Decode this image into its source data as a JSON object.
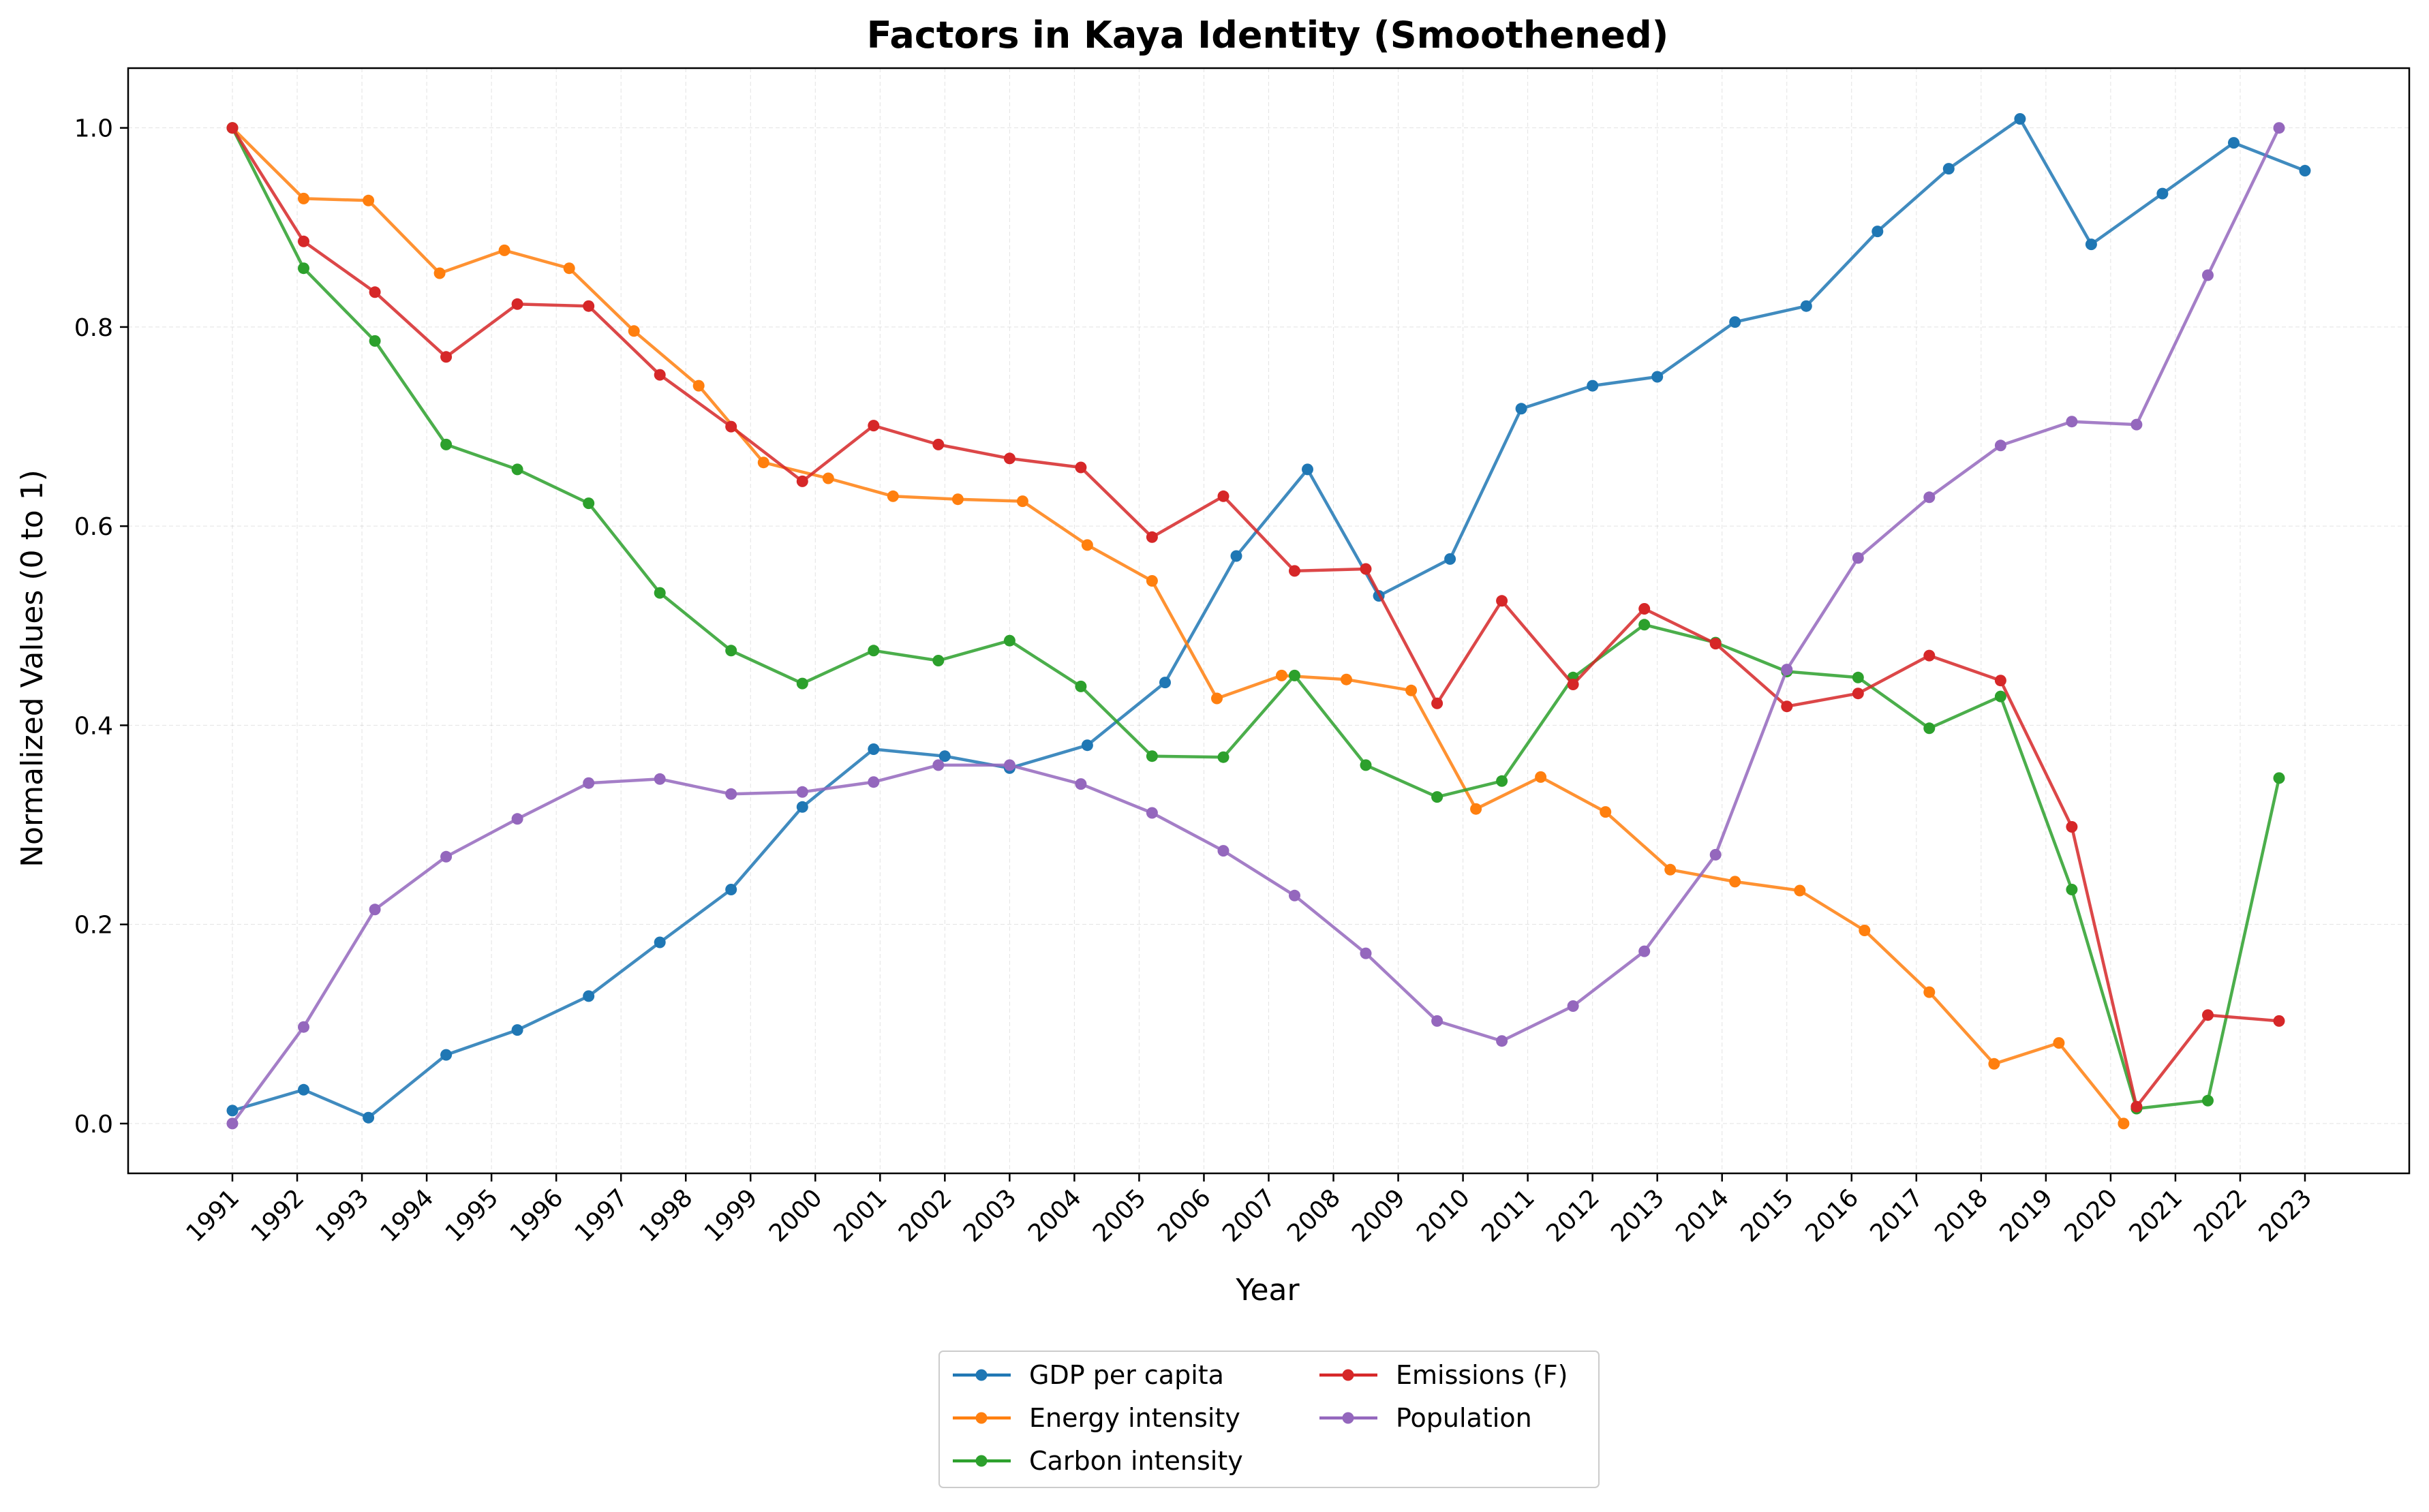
{
  "chart_data": {
    "type": "line",
    "title": "Factors in Kaya Identity (Smoothened)",
    "xlabel": "Year",
    "ylabel": "Normalized Values (0 to 1)",
    "ylim": [
      -0.05,
      1.06
    ],
    "yticks": [
      "0.0",
      "0.2",
      "0.4",
      "0.6",
      "0.8",
      "1.0"
    ],
    "grid": true,
    "legend_position": "bottom-center",
    "categories": [
      "1991",
      "1992",
      "1993",
      "1994",
      "1995",
      "1996",
      "1997",
      "1998",
      "1999",
      "2000",
      "2001",
      "2002",
      "2003",
      "2004",
      "2005",
      "2006",
      "2007",
      "2008",
      "2009",
      "2010",
      "2011",
      "2012",
      "2013",
      "2014",
      "2015",
      "2016",
      "2017",
      "2018",
      "2019",
      "2020",
      "2021",
      "2022",
      "2023"
    ],
    "series": [
      {
        "name": "GDP per capita",
        "color": "#1f77b4",
        "points": [
          [
            1991.0,
            0.013
          ],
          [
            1992.1,
            0.034
          ],
          [
            1993.1,
            0.006
          ],
          [
            1994.3,
            0.069
          ],
          [
            1995.4,
            0.094
          ],
          [
            1996.5,
            0.128
          ],
          [
            1997.6,
            0.182
          ],
          [
            1998.7,
            0.235
          ],
          [
            1999.8,
            0.318
          ],
          [
            2000.9,
            0.376
          ],
          [
            2002.0,
            0.369
          ],
          [
            2003.0,
            0.357
          ],
          [
            2004.2,
            0.38
          ],
          [
            2005.4,
            0.443
          ],
          [
            2006.5,
            0.57
          ],
          [
            2007.6,
            0.657
          ],
          [
            2008.7,
            0.53
          ],
          [
            2009.8,
            0.567
          ],
          [
            2010.9,
            0.718
          ],
          [
            2012.0,
            0.741
          ],
          [
            2013.0,
            0.75
          ],
          [
            2014.2,
            0.805
          ],
          [
            2015.3,
            0.821
          ],
          [
            2016.4,
            0.896
          ],
          [
            2017.5,
            0.959
          ],
          [
            2018.6,
            1.009
          ],
          [
            2019.7,
            0.883
          ],
          [
            2020.8,
            0.934
          ],
          [
            2021.9,
            0.985
          ],
          [
            2023.0,
            0.957
          ]
        ]
      },
      {
        "name": "Energy intensity",
        "color": "#ff7f0e",
        "points": [
          [
            1991.0,
            1.0
          ],
          [
            1992.1,
            0.929
          ],
          [
            1993.1,
            0.927
          ],
          [
            1994.2,
            0.854
          ],
          [
            1995.2,
            0.877
          ],
          [
            1996.2,
            0.859
          ],
          [
            1997.2,
            0.796
          ],
          [
            1998.2,
            0.741
          ],
          [
            1999.2,
            0.664
          ],
          [
            2000.2,
            0.648
          ],
          [
            2001.2,
            0.63
          ],
          [
            2002.2,
            0.627
          ],
          [
            2003.2,
            0.625
          ],
          [
            2004.2,
            0.581
          ],
          [
            2005.2,
            0.545
          ],
          [
            2006.2,
            0.427
          ],
          [
            2007.2,
            0.45
          ],
          [
            2008.2,
            0.446
          ],
          [
            2009.2,
            0.435
          ],
          [
            2010.2,
            0.316
          ],
          [
            2011.2,
            0.348
          ],
          [
            2012.2,
            0.313
          ],
          [
            2013.2,
            0.255
          ],
          [
            2014.2,
            0.243
          ],
          [
            2015.2,
            0.234
          ],
          [
            2016.2,
            0.194
          ],
          [
            2017.2,
            0.132
          ],
          [
            2018.2,
            0.06
          ],
          [
            2019.2,
            0.081
          ],
          [
            2020.2,
            0.0
          ]
        ]
      },
      {
        "name": "Carbon intensity",
        "color": "#2ca02c",
        "points": [
          [
            1991.0,
            1.0
          ],
          [
            1992.1,
            0.859
          ],
          [
            1993.2,
            0.786
          ],
          [
            1994.3,
            0.682
          ],
          [
            1995.4,
            0.657
          ],
          [
            1996.5,
            0.623
          ],
          [
            1997.6,
            0.533
          ],
          [
            1998.7,
            0.475
          ],
          [
            1999.8,
            0.442
          ],
          [
            2000.9,
            0.475
          ],
          [
            2001.9,
            0.465
          ],
          [
            2003.0,
            0.485
          ],
          [
            2004.1,
            0.439
          ],
          [
            2005.2,
            0.369
          ],
          [
            2006.3,
            0.368
          ],
          [
            2007.4,
            0.45
          ],
          [
            2008.5,
            0.36
          ],
          [
            2009.6,
            0.328
          ],
          [
            2010.6,
            0.344
          ],
          [
            2011.7,
            0.448
          ],
          [
            2012.8,
            0.501
          ],
          [
            2013.9,
            0.483
          ],
          [
            2015.0,
            0.454
          ],
          [
            2016.1,
            0.448
          ],
          [
            2017.2,
            0.397
          ],
          [
            2018.3,
            0.429
          ],
          [
            2019.4,
            0.235
          ],
          [
            2020.4,
            0.015
          ],
          [
            2021.5,
            0.023
          ],
          [
            2022.6,
            0.347
          ]
        ]
      },
      {
        "name": "Emissions (F)",
        "color": "#d62728",
        "points": [
          [
            1991.0,
            1.0
          ],
          [
            1992.1,
            0.886
          ],
          [
            1993.2,
            0.835
          ],
          [
            1994.3,
            0.77
          ],
          [
            1995.4,
            0.823
          ],
          [
            1996.5,
            0.821
          ],
          [
            1997.6,
            0.752
          ],
          [
            1998.7,
            0.7
          ],
          [
            1999.8,
            0.645
          ],
          [
            2000.9,
            0.701
          ],
          [
            2001.9,
            0.682
          ],
          [
            2003.0,
            0.668
          ],
          [
            2004.1,
            0.659
          ],
          [
            2005.2,
            0.589
          ],
          [
            2006.3,
            0.63
          ],
          [
            2007.4,
            0.555
          ],
          [
            2008.5,
            0.557
          ],
          [
            2009.6,
            0.422
          ],
          [
            2010.6,
            0.525
          ],
          [
            2011.7,
            0.441
          ],
          [
            2012.8,
            0.517
          ],
          [
            2013.9,
            0.482
          ],
          [
            2015.0,
            0.419
          ],
          [
            2016.1,
            0.432
          ],
          [
            2017.2,
            0.47
          ],
          [
            2018.3,
            0.445
          ],
          [
            2019.4,
            0.298
          ],
          [
            2020.4,
            0.017
          ],
          [
            2021.5,
            0.109
          ],
          [
            2022.6,
            0.103
          ]
        ]
      },
      {
        "name": "Population",
        "color": "#9467bd",
        "points": [
          [
            1991.0,
            0.0
          ],
          [
            1992.1,
            0.097
          ],
          [
            1993.2,
            0.215
          ],
          [
            1994.3,
            0.268
          ],
          [
            1995.4,
            0.306
          ],
          [
            1996.5,
            0.342
          ],
          [
            1997.6,
            0.346
          ],
          [
            1998.7,
            0.331
          ],
          [
            1999.8,
            0.333
          ],
          [
            2000.9,
            0.343
          ],
          [
            2001.9,
            0.36
          ],
          [
            2003.0,
            0.36
          ],
          [
            2004.1,
            0.341
          ],
          [
            2005.2,
            0.312
          ],
          [
            2006.3,
            0.274
          ],
          [
            2007.4,
            0.229
          ],
          [
            2008.5,
            0.171
          ],
          [
            2009.6,
            0.103
          ],
          [
            2010.6,
            0.083
          ],
          [
            2011.7,
            0.118
          ],
          [
            2012.8,
            0.173
          ],
          [
            2013.9,
            0.27
          ],
          [
            2015.0,
            0.456
          ],
          [
            2016.1,
            0.568
          ],
          [
            2017.2,
            0.629
          ],
          [
            2018.3,
            0.681
          ],
          [
            2019.4,
            0.705
          ],
          [
            2020.4,
            0.702
          ],
          [
            2021.5,
            0.852
          ],
          [
            2022.6,
            1.0
          ]
        ]
      }
    ]
  }
}
